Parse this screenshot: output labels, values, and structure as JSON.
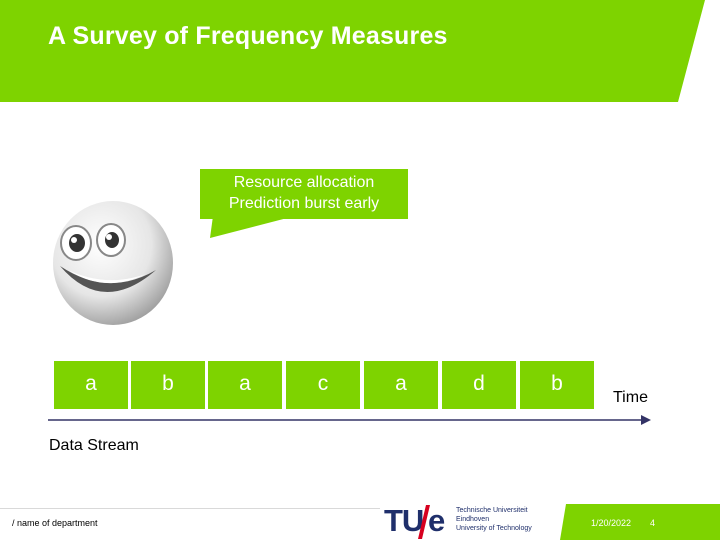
{
  "slide": {
    "title": "A Survey of Frequency Measures",
    "bubble_line1": "Resource allocation",
    "bubble_line2": "Prediction burst early",
    "cells": [
      "a",
      "b",
      "a",
      "c",
      "a",
      "d",
      "b"
    ],
    "time_label": "Time",
    "stream_label": "Data Stream"
  },
  "footer": {
    "department": "/ name of department",
    "logo_tu": "TU",
    "logo_e": "e",
    "logo_line1": "Technische Universiteit",
    "logo_line2": "Eindhoven",
    "logo_line3": "University of Technology",
    "date": "1/20/2022",
    "page": "4"
  },
  "colors": {
    "accent": "#7ed300",
    "logo_blue": "#1f2f6b",
    "logo_red": "#d7001f"
  },
  "icons": [
    "smiley-face-icon",
    "arrow-right-icon",
    "tue-logo"
  ]
}
